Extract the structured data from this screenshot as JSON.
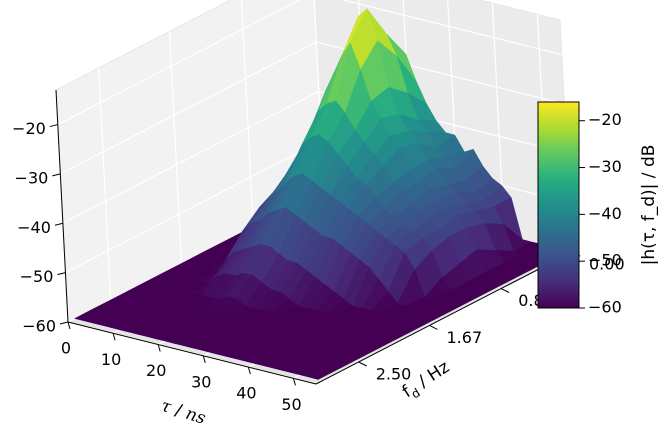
{
  "chart_data": {
    "type": "surface3d",
    "title": "",
    "x_axis": {
      "label_symbol": "τ",
      "label_unit": "ns",
      "ticks": [
        "0",
        "10",
        "20",
        "30",
        "40",
        "50"
      ],
      "range": [
        0,
        55
      ]
    },
    "y_axis": {
      "label_symbol": "f",
      "label_sub": "d",
      "label_unit": "Hz",
      "ticks": [
        "0.00",
        "0.83",
        "1.67",
        "2.50"
      ],
      "range": [
        0,
        3.0
      ]
    },
    "z_axis": {
      "ticks": [
        "−20",
        "−30",
        "−40",
        "−50",
        "−60"
      ],
      "range": [
        -60,
        -13
      ]
    },
    "colorbar": {
      "label": "|h(τ, f_d)| / dB",
      "ticks": [
        "−20",
        "−30",
        "−40",
        "−50",
        "−60"
      ],
      "range": [
        -60,
        -16
      ],
      "colormap": "viridis"
    },
    "tau_ns": [
      0,
      2,
      4,
      6,
      8,
      10,
      12,
      14,
      16,
      18,
      20,
      22,
      24,
      26,
      28,
      30,
      32,
      34,
      36,
      38,
      40,
      42,
      44,
      46,
      48,
      50,
      52,
      54
    ],
    "fd_hz": [
      0.0,
      0.21,
      0.42,
      0.63,
      0.83,
      1.04,
      1.25,
      1.46,
      1.67,
      1.88,
      2.08,
      2.29,
      2.5,
      2.71,
      2.92
    ],
    "rows_by_fd": [
      [
        -60,
        -60,
        -60,
        -60,
        -45,
        -43,
        -40,
        -36,
        -33,
        -30,
        -28,
        -33,
        -37,
        -40,
        -42,
        -42,
        -45,
        -44,
        -47,
        -49,
        -50,
        -52,
        -60,
        -60,
        -60,
        -60,
        -60,
        -44
      ],
      [
        -60,
        -60,
        -60,
        -55,
        -47,
        -44,
        -40,
        -35,
        -29,
        -25,
        -22,
        -26,
        -33,
        -38,
        -40,
        -43,
        -44,
        -46,
        -48,
        -50,
        -51,
        -52,
        -55,
        -60,
        -60,
        -60,
        -60,
        -60
      ],
      [
        -60,
        -60,
        -60,
        -52,
        -44,
        -40,
        -35,
        -30,
        -24,
        -17,
        -15,
        -21,
        -30,
        -35,
        -38,
        -40,
        -43,
        -44,
        -47,
        -48,
        -50,
        -51,
        -53,
        -58,
        -60,
        -60,
        -60,
        -60
      ],
      [
        -60,
        -60,
        -60,
        -50,
        -46,
        -42,
        -37,
        -31,
        -27,
        -23,
        -20,
        -25,
        -31,
        -34,
        -37,
        -39,
        -43,
        -45,
        -46,
        -48,
        -49,
        -50,
        -52,
        -56,
        -60,
        -60,
        -60,
        -60
      ],
      [
        -60,
        -60,
        -60,
        -58,
        -48,
        -45,
        -41,
        -37,
        -33,
        -31,
        -30,
        -32,
        -35,
        -37,
        -39,
        -41,
        -44,
        -45,
        -47,
        -48,
        -49,
        -51,
        -52,
        -57,
        -60,
        -60,
        -60,
        -60
      ],
      [
        -60,
        -60,
        -60,
        -60,
        -52,
        -48,
        -45,
        -42,
        -38,
        -36,
        -35,
        -36,
        -38,
        -40,
        -42,
        -43,
        -45,
        -47,
        -48,
        -49,
        -50,
        -51,
        -53,
        -58,
        -60,
        -60,
        -60,
        -60
      ],
      [
        -60,
        -60,
        -60,
        -60,
        -55,
        -50,
        -48,
        -46,
        -44,
        -42,
        -41,
        -42,
        -43,
        -44,
        -45,
        -46,
        -47,
        -48,
        -49,
        -50,
        -51,
        -52,
        -55,
        -60,
        -60,
        -60,
        -60,
        -60
      ],
      [
        -60,
        -60,
        -60,
        -60,
        -58,
        -53,
        -51,
        -50,
        -48,
        -47,
        -46,
        -47,
        -48,
        -49,
        -50,
        -50,
        -51,
        -52,
        -53,
        -54,
        -56,
        -58,
        -60,
        -60,
        -60,
        -60,
        -60,
        -60
      ],
      [
        -60,
        -60,
        -60,
        -60,
        -60,
        -57,
        -55,
        -54,
        -53,
        -52,
        -52,
        -53,
        -54,
        -54,
        -55,
        -56,
        -57,
        -58,
        -59,
        -60,
        -60,
        -60,
        -60,
        -60,
        -60,
        -60,
        -60,
        -60
      ],
      [
        -60,
        -60,
        -60,
        -60,
        -60,
        -60,
        -58,
        -57,
        -57,
        -56,
        -56,
        -57,
        -58,
        -58,
        -59,
        -60,
        -60,
        -60,
        -60,
        -60,
        -60,
        -60,
        -60,
        -60,
        -60,
        -60,
        -60,
        -60
      ],
      [
        -60,
        -60,
        -60,
        -60,
        -60,
        -60,
        -60,
        -60,
        -60,
        -59,
        -59,
        -60,
        -60,
        -60,
        -60,
        -60,
        -60,
        -60,
        -60,
        -60,
        -60,
        -60,
        -60,
        -60,
        -60,
        -60,
        -60,
        -60
      ],
      [
        -60,
        -60,
        -60,
        -60,
        -60,
        -60,
        -60,
        -60,
        -60,
        -60,
        -60,
        -60,
        -60,
        -60,
        -60,
        -60,
        -60,
        -60,
        -60,
        -60,
        -60,
        -60,
        -60,
        -60,
        -60,
        -60,
        -60,
        -60
      ],
      [
        -60,
        -60,
        -60,
        -60,
        -60,
        -60,
        -60,
        -60,
        -60,
        -60,
        -60,
        -60,
        -60,
        -60,
        -60,
        -60,
        -60,
        -60,
        -60,
        -60,
        -60,
        -60,
        -60,
        -60,
        -60,
        -60,
        -60,
        -60
      ],
      [
        -60,
        -60,
        -60,
        -60,
        -60,
        -60,
        -60,
        -60,
        -60,
        -60,
        -60,
        -60,
        -60,
        -60,
        -60,
        -60,
        -60,
        -60,
        -60,
        -60,
        -60,
        -60,
        -60,
        -60,
        -60,
        -60,
        -60,
        -60
      ],
      [
        -60,
        -60,
        -60,
        -60,
        -60,
        -60,
        -60,
        -60,
        -60,
        -60,
        -60,
        -60,
        -60,
        -60,
        -60,
        -60,
        -60,
        -60,
        -60,
        -60,
        -60,
        -60,
        -60,
        -60,
        -60,
        -60,
        -60,
        -60
      ]
    ]
  }
}
